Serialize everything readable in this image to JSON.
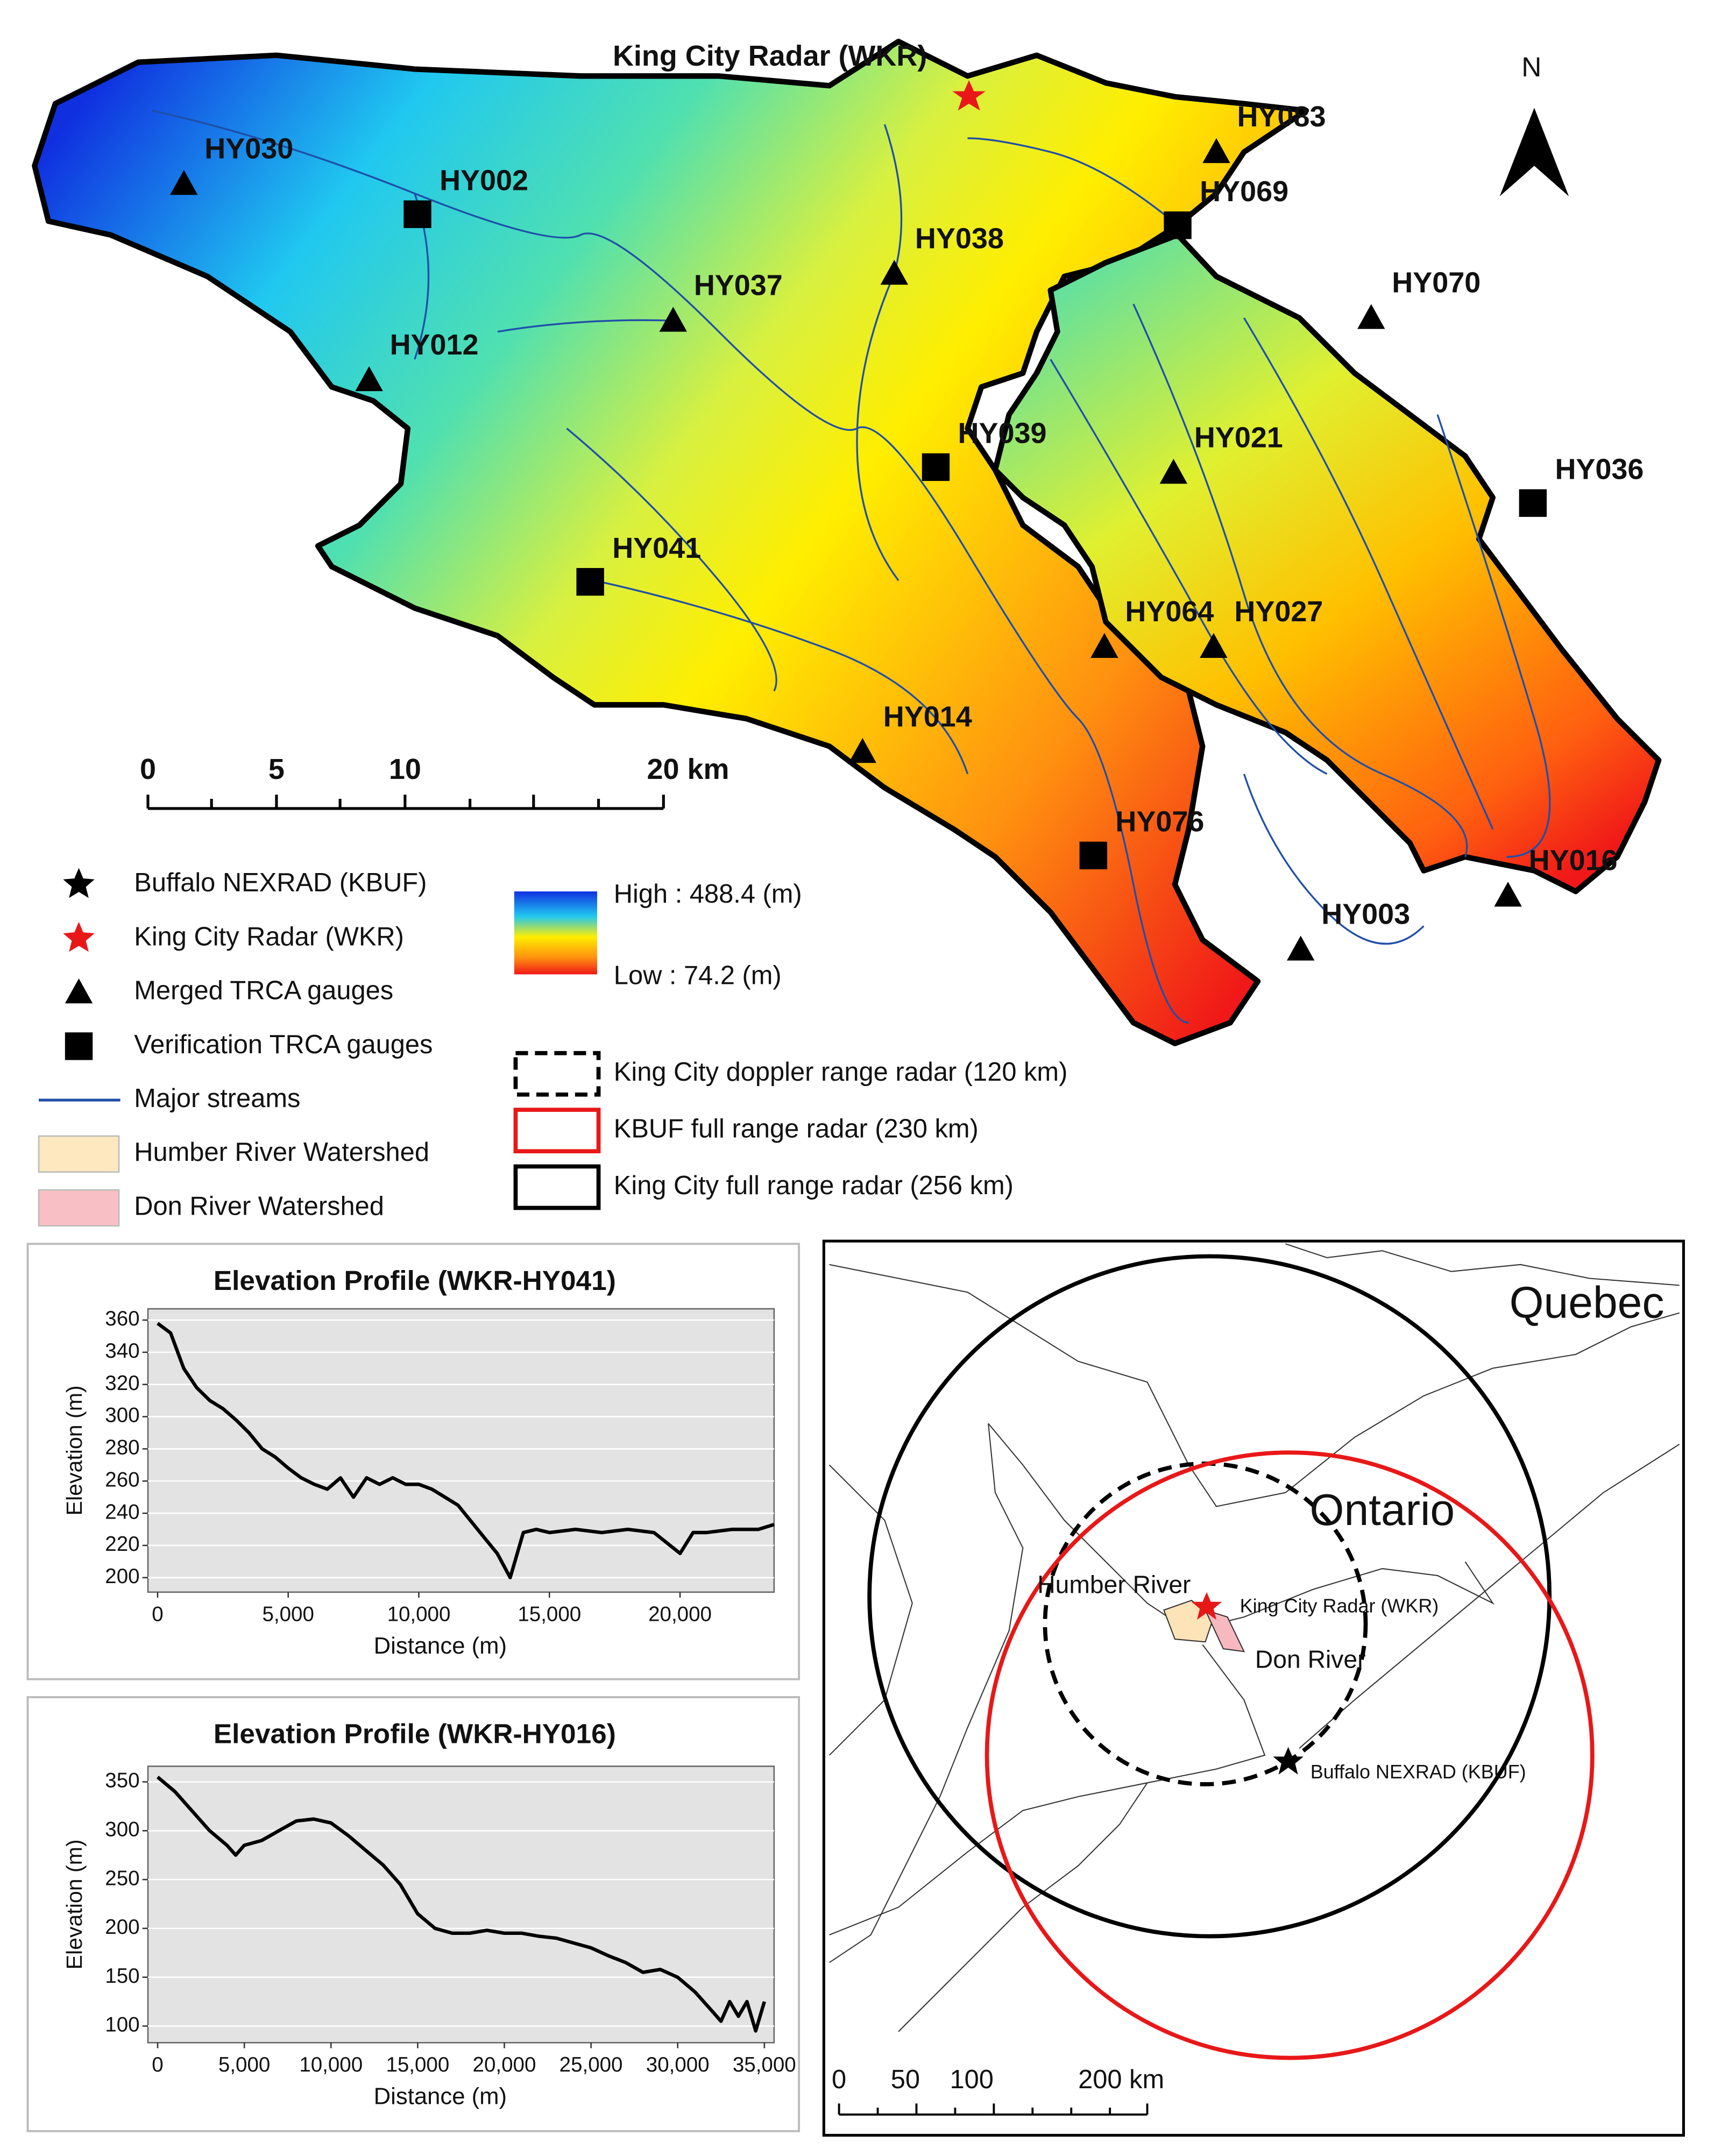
{
  "map": {
    "title": "King City Radar (WKR)",
    "north": "N",
    "merged_gauges": [
      "HY030",
      "HY012",
      "HY037",
      "HY038",
      "HY083",
      "HY070",
      "HY021",
      "HY064",
      "HY027",
      "HY014",
      "HY016",
      "HY003"
    ],
    "verification_gauges": [
      "HY002",
      "HY069",
      "HY039",
      "HY041",
      "HY036",
      "HY076"
    ],
    "scale_bar": [
      "0",
      "5",
      "10",
      "20 km"
    ],
    "legend": [
      "Buffalo NEXRAD (KBUF)",
      "King City Radar (WKR)",
      "Merged TRCA gauges",
      "Verification TRCA gauges",
      "Major streams",
      "Humber River Watershed",
      "Don River Watershed"
    ],
    "elevation_high": "High : 488.4 (m)",
    "elevation_low": "Low : 74.2 (m)",
    "range_legend": [
      "King City doppler range radar (120 km)",
      "KBUF full range radar (230 km)",
      "King City full range radar (256 km)"
    ]
  },
  "overview": {
    "labels": {
      "quebec": "Quebec",
      "ontario": "Ontario",
      "humber": "Humber River",
      "wkr": "King City Radar (WKR)",
      "don": "Don River",
      "kbuf": "Buffalo NEXRAD (KBUF)"
    },
    "scale_bar": [
      "0",
      "50",
      "100",
      "200 km"
    ]
  },
  "chart_data": [
    {
      "type": "line",
      "title": "Elevation Profile (WKR-HY041)",
      "x_label": "Distance (m)",
      "y_label": "Elevation (m)",
      "color": "#000000",
      "grid": true,
      "x": [
        0,
        500,
        1000,
        1500,
        2000,
        2500,
        3000,
        3500,
        4000,
        4500,
        5000,
        5500,
        6000,
        6500,
        7000,
        7500,
        8000,
        8500,
        9000,
        9500,
        10000,
        10500,
        11000,
        11500,
        12000,
        12500,
        13000,
        13500,
        14000,
        14500,
        15000,
        16000,
        17000,
        18000,
        19000,
        20000,
        20500,
        21000,
        22000,
        23000,
        23600
      ],
      "values": [
        358,
        352,
        330,
        318,
        310,
        305,
        298,
        290,
        280,
        275,
        268,
        262,
        258,
        255,
        262,
        250,
        262,
        258,
        262,
        258,
        258,
        255,
        250,
        245,
        235,
        225,
        215,
        200,
        228,
        230,
        228,
        230,
        228,
        230,
        228,
        215,
        228,
        228,
        230,
        230,
        233
      ],
      "xlim": [
        -370,
        23600
      ],
      "ylim": [
        191,
        367
      ],
      "xticks": [
        0,
        {
          "value": 5000,
          "label": "5,000"
        },
        {
          "value": 10000,
          "label": "10,000"
        },
        {
          "value": 15000,
          "label": "15,000"
        },
        {
          "value": 20000,
          "label": "20,000"
        }
      ],
      "yticks": [
        200,
        220,
        240,
        260,
        280,
        300,
        320,
        340,
        360
      ]
    },
    {
      "type": "line",
      "title": "Elevation Profile (WKR-HY016)",
      "x_label": "Distance (m)",
      "y_label": "Elevation (m)",
      "color": "#000000",
      "grid": true,
      "x": [
        0,
        1000,
        2000,
        3000,
        4000,
        4500,
        5000,
        6000,
        7000,
        8000,
        9000,
        10000,
        11000,
        12000,
        13000,
        14000,
        15000,
        16000,
        17000,
        18000,
        19000,
        20000,
        21000,
        22000,
        23000,
        24000,
        25000,
        26000,
        27000,
        28000,
        29000,
        30000,
        31000,
        32000,
        32500,
        33000,
        33500,
        34000,
        34500,
        35000
      ],
      "values": [
        355,
        340,
        320,
        300,
        285,
        275,
        285,
        290,
        300,
        310,
        312,
        308,
        295,
        280,
        265,
        245,
        215,
        200,
        195,
        195,
        198,
        195,
        195,
        192,
        190,
        185,
        180,
        172,
        165,
        155,
        158,
        150,
        135,
        115,
        105,
        125,
        110,
        125,
        95,
        125
      ],
      "xlim": [
        -560,
        35560
      ],
      "ylim": [
        83,
        366
      ],
      "xticks": [
        0,
        {
          "value": 5000,
          "label": "5,000"
        },
        {
          "value": 10000,
          "label": "10,000"
        },
        {
          "value": 15000,
          "label": "15,000"
        },
        {
          "value": 20000,
          "label": "20,000"
        },
        {
          "value": 25000,
          "label": "25,000"
        },
        {
          "value": 30000,
          "label": "30,000"
        },
        {
          "value": 35000,
          "label": "35,000"
        }
      ],
      "yticks": [
        100,
        150,
        200,
        250,
        300,
        350
      ]
    }
  ]
}
